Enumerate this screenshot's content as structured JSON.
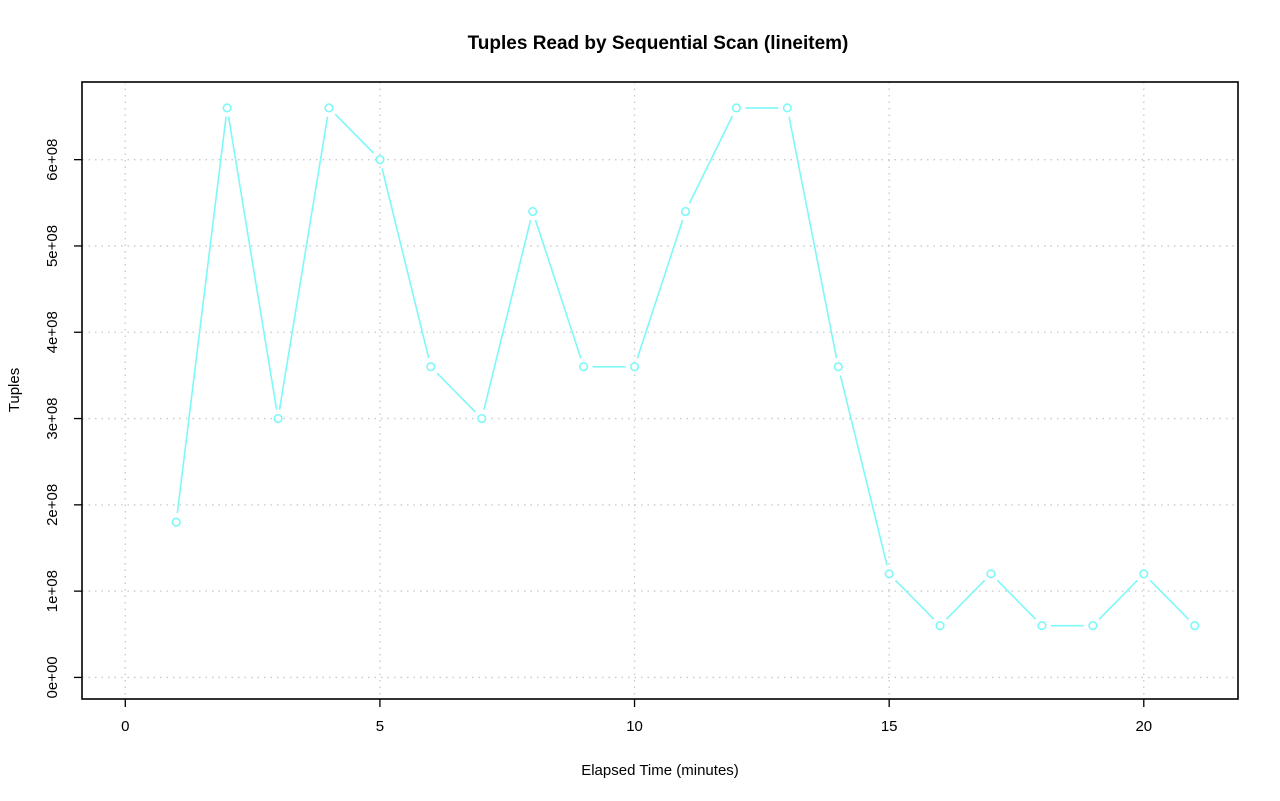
{
  "chart_data": {
    "type": "line",
    "title": "Tuples Read by Sequential Scan (lineitem)",
    "xlabel": "Elapsed Time (minutes)",
    "ylabel": "Tuples",
    "xlim": [
      -0.85,
      21.85
    ],
    "ylim": [
      -25000000,
      690000000
    ],
    "x_ticks": [
      0,
      5,
      10,
      15,
      20
    ],
    "x_tick_labels": [
      "0",
      "5",
      "10",
      "15",
      "20"
    ],
    "y_ticks": [
      0,
      100000000,
      200000000,
      300000000,
      400000000,
      500000000,
      600000000
    ],
    "y_tick_labels": [
      "0e+00",
      "1e+08",
      "2e+08",
      "3e+08",
      "4e+08",
      "5e+08",
      "6e+08"
    ],
    "grid": true,
    "series_color": "#7ff8f8",
    "x": [
      1,
      2,
      3,
      4,
      5,
      6,
      7,
      8,
      9,
      10,
      11,
      12,
      13,
      14,
      15,
      16,
      17,
      18,
      19,
      20,
      21
    ],
    "y": [
      180000000,
      660000000,
      300000000,
      660000000,
      600000000,
      360000000,
      300000000,
      540000000,
      360000000,
      360000000,
      540000000,
      660000000,
      660000000,
      360000000,
      120000000,
      60000000,
      120000000,
      60000000,
      60000000,
      120000000,
      60000000
    ]
  }
}
